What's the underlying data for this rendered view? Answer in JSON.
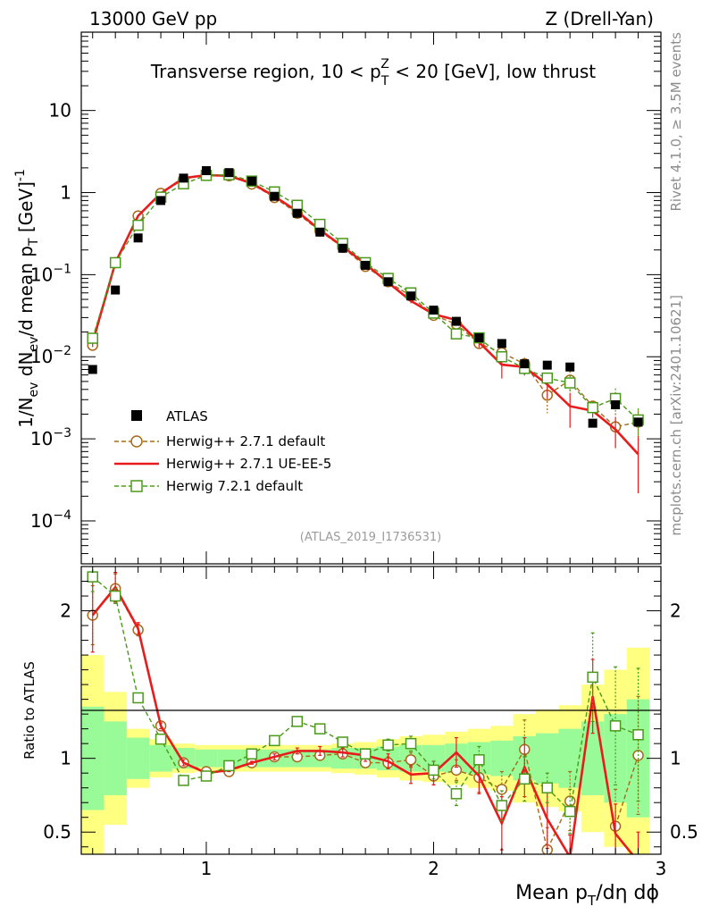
{
  "header": {
    "energy": "13000 GeV pp",
    "process": "Z (Drell-Yan)"
  },
  "side_text": {
    "rivet": "Rivet 4.1.0, ≥ 3.5M events",
    "mcplots": "mcplots.cern.ch [arXiv:2401.10621]"
  },
  "analysis_id": "(ATLAS_2019_I1736531)",
  "chart_data": {
    "type": "scatter",
    "title": "Transverse region, 10 < p_T^Z < 20 [GeV], low thrust",
    "title_parts": {
      "a": "Transverse region, 10 < p",
      "sub": "T",
      "sup": "Z",
      "b": " < 20 [GeV], low thrust"
    },
    "xlabel_parts": {
      "a": "Mean p",
      "sub": "T",
      "b": "/dη dϕ"
    },
    "ylabel_parts": {
      "a": "1/N",
      "sub1": "ev",
      "b": " dN",
      "sub2": "ev",
      "c": "/d mean p",
      "sub3": "T",
      "d": " [GeV]",
      "sup": "-1"
    },
    "ratio_ylabel": "Ratio to ATLAS",
    "xlim": [
      0.45,
      3.0
    ],
    "ylim": [
      3e-05,
      90
    ],
    "ratio_ylim": [
      0.35,
      2.3
    ],
    "x_ticks": [
      1,
      2,
      3
    ],
    "y_ticks": [
      {
        "v": 10,
        "base": "10",
        "exp": ""
      },
      {
        "v": 1,
        "base": "1",
        "exp": ""
      },
      {
        "v": 0.1,
        "base": "10",
        "exp": "−1"
      },
      {
        "v": 0.01,
        "base": "10",
        "exp": "−2"
      },
      {
        "v": 0.001,
        "base": "10",
        "exp": "−3"
      },
      {
        "v": 0.0001,
        "base": "10",
        "exp": "−4"
      }
    ],
    "ratio_ticks": [
      {
        "v": 0.5,
        "label": "0.5"
      },
      {
        "v": 1,
        "label": "1"
      },
      {
        "v": 2,
        "label": "2"
      }
    ],
    "x": [
      0.5,
      0.6,
      0.7,
      0.8,
      0.9,
      1.0,
      1.1,
      1.2,
      1.3,
      1.4,
      1.5,
      1.6,
      1.7,
      1.8,
      1.9,
      2.0,
      2.1,
      2.2,
      2.3,
      2.4,
      2.5,
      2.6,
      2.7,
      2.8,
      2.9
    ],
    "bin_width": 0.1,
    "band_inner": [
      0.35,
      0.25,
      0.14,
      0.09,
      0.07,
      0.06,
      0.06,
      0.06,
      0.06,
      0.06,
      0.06,
      0.07,
      0.07,
      0.08,
      0.09,
      0.09,
      0.1,
      0.11,
      0.12,
      0.15,
      0.17,
      0.2,
      0.25,
      0.3,
      0.4
    ],
    "band_outer": [
      0.7,
      0.45,
      0.2,
      0.13,
      0.1,
      0.09,
      0.09,
      0.09,
      0.09,
      0.09,
      0.09,
      0.1,
      0.11,
      0.13,
      0.15,
      0.16,
      0.18,
      0.2,
      0.22,
      0.3,
      0.33,
      0.36,
      0.5,
      0.6,
      0.75
    ],
    "series": [
      {
        "name": "ATLAS",
        "style": "data",
        "color": "#000000",
        "values": [
          0.007,
          0.065,
          0.28,
          0.8,
          1.5,
          1.85,
          1.75,
          1.38,
          0.9,
          0.56,
          0.33,
          0.21,
          0.13,
          0.082,
          0.055,
          0.037,
          0.027,
          0.017,
          0.0145,
          0.0082,
          0.0079,
          0.0075,
          0.00155,
          0.0026,
          0.0016
        ]
      },
      {
        "name": "Herwig++ 2.7.1 default",
        "style": "circle",
        "color": "#a66a1a",
        "values": [
          0.0138,
          0.14,
          0.52,
          0.98,
          1.45,
          1.67,
          1.6,
          1.27,
          0.87,
          0.56,
          0.34,
          0.215,
          0.126,
          0.082,
          0.055,
          0.032,
          0.025,
          0.0145,
          0.0112,
          0.0082,
          0.0034,
          0.0052,
          0.0025,
          0.0014,
          0.0016
        ],
        "ratio": [
          1.97,
          2.15,
          1.87,
          1.22,
          0.97,
          0.91,
          0.91,
          0.97,
          1.01,
          1.01,
          1.02,
          1.03,
          0.97,
          0.97,
          0.99,
          0.88,
          0.92,
          0.87,
          0.79,
          1.06,
          0.38,
          0.71,
          null,
          0.54,
          1.02
        ],
        "ratio_err": [
          0.2,
          0.1,
          0.04,
          0.02,
          0.02,
          0.01,
          0.01,
          0.01,
          0.01,
          0.02,
          0.02,
          0.03,
          0.03,
          0.04,
          0.05,
          0.06,
          0.07,
          0.1,
          0.12,
          0.2,
          0.15,
          0.2,
          0,
          0.25,
          0.4
        ]
      },
      {
        "name": "Herwig++ 2.7.1 UE-EE-5",
        "style": "line",
        "color": "#e81c1c",
        "values": [
          0.015,
          0.14,
          0.52,
          0.98,
          1.5,
          1.63,
          1.6,
          1.3,
          0.9,
          0.59,
          0.35,
          0.22,
          0.135,
          0.08,
          0.048,
          0.033,
          0.028,
          0.015,
          0.008,
          0.0075,
          0.0046,
          0.0025,
          0.0022,
          0.0013,
          0.00065
        ],
        "ratio": [
          1.97,
          2.16,
          1.88,
          1.22,
          0.97,
          0.9,
          0.92,
          0.97,
          1.01,
          1.05,
          1.05,
          1.04,
          1.02,
          0.98,
          0.89,
          0.9,
          1.04,
          0.88,
          0.56,
          0.94,
          0.59,
          0.33,
          1.42,
          0.49,
          0.3
        ],
        "ratio_err": [
          0.25,
          0.1,
          0.04,
          0.02,
          0.02,
          0.01,
          0.01,
          0.01,
          0.02,
          0.02,
          0.03,
          0.03,
          0.04,
          0.05,
          0.06,
          0.08,
          0.1,
          0.12,
          0.18,
          0.2,
          0.2,
          0.15,
          0.25,
          0.2,
          0.2
        ]
      },
      {
        "name": "Herwig 7.2.1 default",
        "style": "square",
        "color": "#4a9a1a",
        "values": [
          0.0168,
          0.14,
          0.4,
          0.88,
          1.28,
          1.62,
          1.65,
          1.38,
          1.02,
          0.7,
          0.41,
          0.24,
          0.14,
          0.09,
          0.06,
          0.034,
          0.019,
          0.017,
          0.01,
          0.0072,
          0.0055,
          0.0048,
          0.0024,
          0.0031,
          0.0017
        ],
        "ratio": [
          2.23,
          2.1,
          1.41,
          1.13,
          0.85,
          0.88,
          0.95,
          1.03,
          1.12,
          1.25,
          1.2,
          1.11,
          1.03,
          1.09,
          1.1,
          0.92,
          0.76,
          0.99,
          0.68,
          0.86,
          0.8,
          0.64,
          1.55,
          1.22,
          1.16
        ],
        "ratio_err": [
          0.1,
          0.05,
          0.03,
          0.02,
          0.02,
          0.01,
          0.01,
          0.01,
          0.01,
          0.02,
          0.02,
          0.03,
          0.03,
          0.04,
          0.05,
          0.06,
          0.08,
          0.09,
          0.1,
          0.15,
          0.1,
          0.15,
          0.3,
          0.4,
          0.45
        ]
      }
    ]
  }
}
